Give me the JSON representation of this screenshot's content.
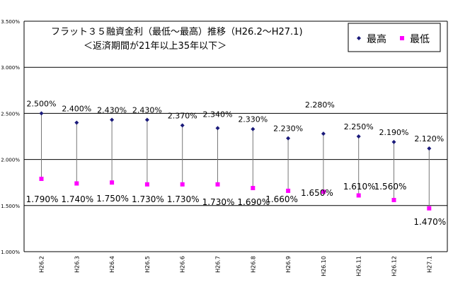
{
  "chart_data": {
    "type": "scatter",
    "title": "フラット３５融資金利（最低～最高）推移（H26.2～H27.1)",
    "subtitle": "＜返済期間が21年以上35年以下＞",
    "categories": [
      "H26.2",
      "H26.3",
      "H26.4",
      "H26.5",
      "H26.6",
      "H26.7",
      "H26.8",
      "H26.9",
      "H26.10",
      "H26.11",
      "H26.12",
      "H27.1"
    ],
    "ylim": [
      1.0,
      3.5
    ],
    "yticks": [
      "1.000%",
      "1.500%",
      "2.000%",
      "2.500%",
      "3.000%",
      "3.500%"
    ],
    "grid": true,
    "legend_position": "top-right",
    "series": [
      {
        "name": "最高",
        "color": "#1a1a7a",
        "marker": "diamond",
        "values": [
          2.5,
          2.4,
          2.43,
          2.43,
          2.37,
          2.34,
          2.33,
          2.23,
          2.28,
          2.25,
          2.19,
          2.12
        ],
        "labels": [
          "2.500%",
          "2.400%",
          "2.430%",
          "2.430%",
          "2.370%",
          "2.340%",
          "2.330%",
          "2.230%",
          "2.280%",
          "2.250%",
          "2.190%",
          "2.120%"
        ]
      },
      {
        "name": "最低",
        "color": "#ff00ff",
        "marker": "square",
        "values": [
          1.79,
          1.74,
          1.75,
          1.73,
          1.73,
          1.73,
          1.69,
          1.66,
          1.65,
          1.61,
          1.56,
          1.47
        ],
        "labels": [
          "1.790%",
          "1.740%",
          "1.750%",
          "1.730%",
          "1.730%",
          "1.730%",
          "1.690%",
          "1.660%",
          "1.650%",
          "1.610%",
          "1.560%",
          "1.470%"
        ]
      }
    ]
  }
}
